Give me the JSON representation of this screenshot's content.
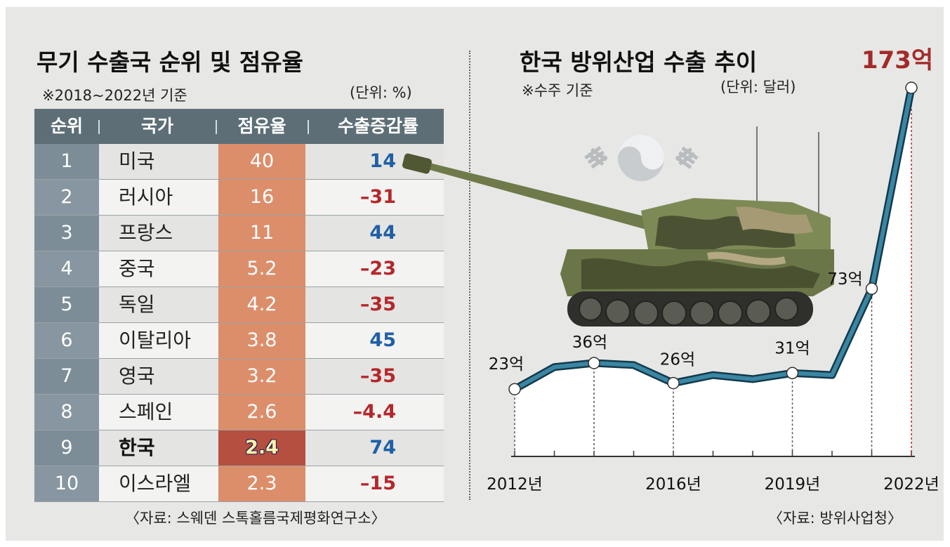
{
  "left": {
    "title": "무기 수출국 순위 및 점유율",
    "subtitle": "※2018~2022년 기준",
    "unit": "(단위: %)",
    "headers": [
      "순위",
      "국가",
      "점유율",
      "수출증감률"
    ],
    "rows": [
      {
        "rank": "1",
        "country": "미국",
        "share": "40",
        "change": "14"
      },
      {
        "rank": "2",
        "country": "러시아",
        "share": "16",
        "change": "–31"
      },
      {
        "rank": "3",
        "country": "프랑스",
        "share": "11",
        "change": "44"
      },
      {
        "rank": "4",
        "country": "중국",
        "share": "5.2",
        "change": "–23"
      },
      {
        "rank": "5",
        "country": "독일",
        "share": "4.2",
        "change": "–35"
      },
      {
        "rank": "6",
        "country": "이탈리아",
        "share": "3.8",
        "change": "45"
      },
      {
        "rank": "7",
        "country": "영국",
        "share": "3.2",
        "change": "–35"
      },
      {
        "rank": "8",
        "country": "스페인",
        "share": "2.6",
        "change": "–4.4"
      },
      {
        "rank": "9",
        "country": "한국",
        "share": "2.4",
        "change": "74"
      },
      {
        "rank": "10",
        "country": "이스라엘",
        "share": "2.3",
        "change": "–15"
      }
    ],
    "source": "〈자료: 스웨덴 스톡홀름국제평화연구소〉"
  },
  "right": {
    "title": "한국 방위산업 수출 추이",
    "subtitle": "※수주 기준",
    "unit": "(단위: 달러)",
    "source": "〈자료: 방위사업청〉"
  },
  "colors": {
    "positive": "#1f5fa6",
    "negative": "#b5272b",
    "line": "#1e5b74",
    "share_bar": "#dc8e6b",
    "share_highlight": "#b54f3f",
    "header": "#5d6e76"
  },
  "chart_data": {
    "type": "line",
    "title": "한국 방위산업 수출 추이",
    "unit": "억 달러",
    "x": [
      2012,
      2013,
      2014,
      2015,
      2016,
      2017,
      2018,
      2019,
      2020,
      2021,
      2022
    ],
    "values": [
      23,
      34,
      36,
      35,
      26,
      30,
      28,
      31,
      30,
      73,
      173
    ],
    "data_labels": {
      "2012": "23억",
      "2014": "36억",
      "2016": "26억",
      "2019": "31억",
      "2021": "73억",
      "2022": "173억"
    },
    "x_tick_labels": {
      "2012": "2012년",
      "2016": "2016년",
      "2019": "2019년",
      "2022": "2022년"
    },
    "ylim": [
      0,
      180
    ],
    "grid": false
  }
}
